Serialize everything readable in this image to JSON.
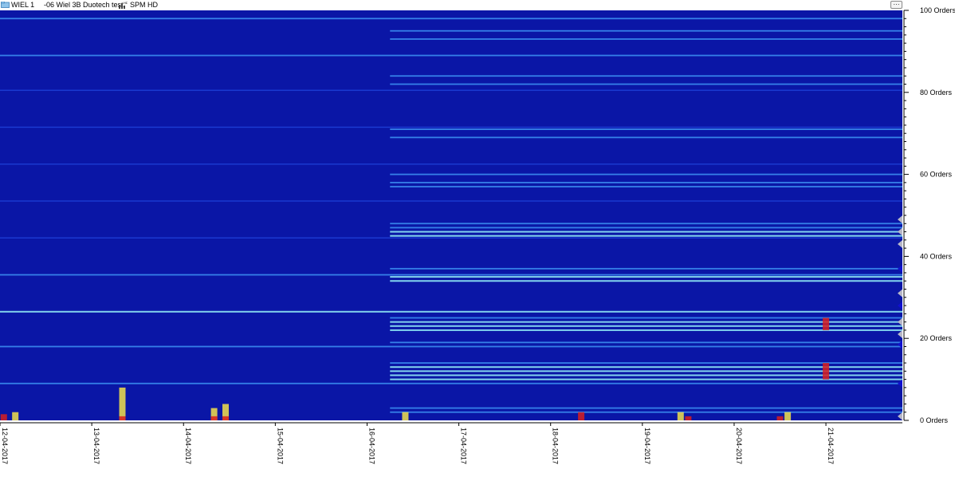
{
  "window": {
    "asset_name": "WIEL 1",
    "point_name": "-06 Wiel 3B Duotech test",
    "measurement_type": "SPM HD",
    "menu_label": "···"
  },
  "colors": {
    "background": "#0a16a6",
    "line_faint": "#1e40d8",
    "line_medium": "#3a8cf0",
    "line_bright": "#8fe8f5",
    "hot_yellow": "#f2e04a",
    "hot_red": "#d81e1e",
    "marker_blue": "#1010d0",
    "marker_gray": "#b8b8c8"
  },
  "chart_data": {
    "type": "heatmap",
    "title": "",
    "xlabel": "",
    "ylabel": "",
    "x_start": "12-04-2017",
    "x_end": "21-04-2017 20:00",
    "x_ticks": [
      "12-04-2017",
      "13-04-2017",
      "14-04-2017",
      "15-04-2017",
      "16-04-2017",
      "17-04-2017",
      "18-04-2017",
      "19-04-2017",
      "20-04-2017",
      "21-04-2017"
    ],
    "y_unit": "Orders",
    "ylim": [
      0,
      100
    ],
    "y_ticks": [
      0,
      20,
      40,
      60,
      80,
      100
    ],
    "y_tick_labels": [
      "0 Orders",
      "20 Orders",
      "40 Orders",
      "60 Orders",
      "80 Orders",
      "100 Orders"
    ],
    "bands": [
      {
        "order": 9,
        "from": "12-04-2017",
        "to": "21-04-2017 20:00",
        "level": 2
      },
      {
        "order": 18,
        "from": "12-04-2017",
        "to": "21-04-2017 20:00",
        "level": 2
      },
      {
        "order": 26.5,
        "from": "12-04-2017",
        "to": "21-04-2017 20:00",
        "level": 3
      },
      {
        "order": 35.5,
        "from": "12-04-2017",
        "to": "21-04-2017 20:00",
        "level": 2
      },
      {
        "order": 44.5,
        "from": "12-04-2017",
        "to": "21-04-2017 20:00",
        "level": 1
      },
      {
        "order": 53.5,
        "from": "12-04-2017",
        "to": "21-04-2017 20:00",
        "level": 1
      },
      {
        "order": 62.5,
        "from": "12-04-2017",
        "to": "21-04-2017 20:00",
        "level": 1
      },
      {
        "order": 71.5,
        "from": "12-04-2017",
        "to": "21-04-2017 20:00",
        "level": 1
      },
      {
        "order": 80.5,
        "from": "12-04-2017",
        "to": "21-04-2017 20:00",
        "level": 1
      },
      {
        "order": 89,
        "from": "12-04-2017",
        "to": "21-04-2017 20:00",
        "level": 2
      },
      {
        "order": 98,
        "from": "12-04-2017",
        "to": "21-04-2017 20:00",
        "level": 2
      },
      {
        "order": 2,
        "from": "16-04-2017 06:00",
        "to": "21-04-2017 20:00",
        "level": 2
      },
      {
        "order": 3,
        "from": "16-04-2017 06:00",
        "to": "21-04-2017 20:00",
        "level": 2
      },
      {
        "order": 10,
        "from": "16-04-2017 06:00",
        "to": "21-04-2017 20:00",
        "level": 3
      },
      {
        "order": 11,
        "from": "16-04-2017 06:00",
        "to": "21-04-2017 20:00",
        "level": 3
      },
      {
        "order": 12,
        "from": "16-04-2017 06:00",
        "to": "21-04-2017 20:00",
        "level": 3
      },
      {
        "order": 13,
        "from": "16-04-2017 06:00",
        "to": "21-04-2017 20:00",
        "level": 3
      },
      {
        "order": 14,
        "from": "16-04-2017 06:00",
        "to": "21-04-2017 20:00",
        "level": 2
      },
      {
        "order": 19,
        "from": "16-04-2017 06:00",
        "to": "21-04-2017 20:00",
        "level": 2
      },
      {
        "order": 22,
        "from": "16-04-2017 06:00",
        "to": "21-04-2017 20:00",
        "level": 3
      },
      {
        "order": 23,
        "from": "16-04-2017 06:00",
        "to": "21-04-2017 20:00",
        "level": 3
      },
      {
        "order": 24,
        "from": "16-04-2017 06:00",
        "to": "21-04-2017 20:00",
        "level": 3
      },
      {
        "order": 25,
        "from": "16-04-2017 06:00",
        "to": "21-04-2017 20:00",
        "level": 2
      },
      {
        "order": 34,
        "from": "16-04-2017 06:00",
        "to": "21-04-2017 20:00",
        "level": 3
      },
      {
        "order": 35,
        "from": "16-04-2017 06:00",
        "to": "21-04-2017 20:00",
        "level": 3
      },
      {
        "order": 37,
        "from": "16-04-2017 06:00",
        "to": "21-04-2017 20:00",
        "level": 2
      },
      {
        "order": 45,
        "from": "16-04-2017 06:00",
        "to": "21-04-2017 20:00",
        "level": 3
      },
      {
        "order": 46,
        "from": "16-04-2017 06:00",
        "to": "21-04-2017 20:00",
        "level": 3
      },
      {
        "order": 47,
        "from": "16-04-2017 06:00",
        "to": "21-04-2017 20:00",
        "level": 2
      },
      {
        "order": 48,
        "from": "16-04-2017 06:00",
        "to": "21-04-2017 20:00",
        "level": 2
      },
      {
        "order": 57,
        "from": "16-04-2017 06:00",
        "to": "21-04-2017 20:00",
        "level": 2
      },
      {
        "order": 58,
        "from": "16-04-2017 06:00",
        "to": "21-04-2017 20:00",
        "level": 2
      },
      {
        "order": 60,
        "from": "16-04-2017 06:00",
        "to": "21-04-2017 20:00",
        "level": 2
      },
      {
        "order": 69,
        "from": "16-04-2017 06:00",
        "to": "21-04-2017 20:00",
        "level": 2
      },
      {
        "order": 71,
        "from": "16-04-2017 06:00",
        "to": "21-04-2017 20:00",
        "level": 2
      },
      {
        "order": 82,
        "from": "16-04-2017 06:00",
        "to": "21-04-2017 20:00",
        "level": 2
      },
      {
        "order": 84,
        "from": "16-04-2017 06:00",
        "to": "21-04-2017 20:00",
        "level": 2
      },
      {
        "order": 93,
        "from": "16-04-2017 06:00",
        "to": "21-04-2017 20:00",
        "level": 2
      },
      {
        "order": 95,
        "from": "16-04-2017 06:00",
        "to": "21-04-2017 20:00",
        "level": 2
      }
    ],
    "hotspots": [
      {
        "time": "12-04-2017 01:00",
        "orders": [
          0,
          1.5
        ],
        "level": "red"
      },
      {
        "time": "12-04-2017 04:00",
        "orders": [
          0,
          2
        ],
        "level": "yellow"
      },
      {
        "time": "13-04-2017 08:00",
        "orders": [
          0,
          8
        ],
        "level": "yellow"
      },
      {
        "time": "13-04-2017 08:00",
        "orders": [
          0,
          1
        ],
        "level": "red"
      },
      {
        "time": "14-04-2017 08:00",
        "orders": [
          0,
          3
        ],
        "level": "yellow"
      },
      {
        "time": "14-04-2017 08:00",
        "orders": [
          0,
          1
        ],
        "level": "red"
      },
      {
        "time": "14-04-2017 11:00",
        "orders": [
          0,
          4
        ],
        "level": "yellow"
      },
      {
        "time": "14-04-2017 11:00",
        "orders": [
          0,
          1
        ],
        "level": "red"
      },
      {
        "time": "16-04-2017 10:00",
        "orders": [
          0,
          2
        ],
        "level": "yellow"
      },
      {
        "time": "18-04-2017 08:00",
        "orders": [
          0,
          2
        ],
        "level": "red"
      },
      {
        "time": "19-04-2017 10:00",
        "orders": [
          0,
          2
        ],
        "level": "yellow"
      },
      {
        "time": "19-04-2017 12:00",
        "orders": [
          0,
          1
        ],
        "level": "red"
      },
      {
        "time": "20-04-2017 12:00",
        "orders": [
          0,
          1
        ],
        "level": "red"
      },
      {
        "time": "20-04-2017 14:00",
        "orders": [
          0,
          2
        ],
        "level": "yellow"
      },
      {
        "time": "21-04-2017 00:00",
        "orders": [
          10,
          14
        ],
        "level": "red"
      },
      {
        "time": "21-04-2017 00:00",
        "orders": [
          22,
          25
        ],
        "level": "red"
      }
    ],
    "order_markers": [
      {
        "order": 1,
        "color": "gray"
      },
      {
        "order": 9,
        "color": "blue"
      },
      {
        "order": 18.5,
        "color": "blue"
      },
      {
        "order": 21,
        "color": "gray"
      },
      {
        "order": 24,
        "color": "gray"
      },
      {
        "order": 28,
        "color": "blue"
      },
      {
        "order": 31,
        "color": "gray"
      },
      {
        "order": 37,
        "color": "blue"
      },
      {
        "order": 43,
        "color": "gray"
      },
      {
        "order": 46,
        "color": "gray"
      },
      {
        "order": 49,
        "color": "gray"
      }
    ]
  }
}
